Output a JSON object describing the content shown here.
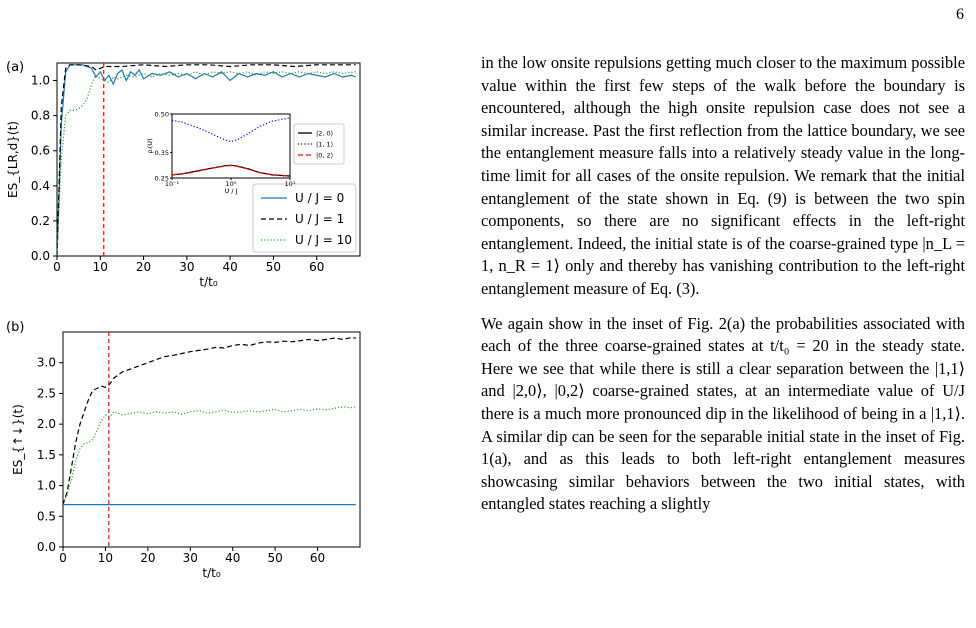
{
  "page_number": "6",
  "panel_labels": [
    "(a)",
    "(b)"
  ],
  "paragraphs": [
    "in the low onsite repulsions getting much closer to the maximum possible value within the first few steps of the walk before the boundary is encountered, although the high onsite repulsion case does not see a similar increase. Past the first reflection from the lattice boundary, we see the entanglement measure falls into a relatively steady value in the long-time limit for all cases of the onsite repulsion. We remark that the initial entanglement of the state shown in Eq. (9) is between the two spin components, so there are no significant effects in the left-right entanglement. Indeed, the initial state is of the coarse-grained type |n_L = 1, n_R = 1⟩ only and thereby has vanishing contribution to the left-right entanglement measure of Eq. (3).",
    "We again show in the inset of Fig. 2(a) the probabilities associated with each of the three coarse-grained states at t/t₀ = 20 in the steady state. Here we see that while there is still a clear separation between the |1,1⟩ and |2,0⟩, |0,2⟩ coarse-grained states, at an intermediate value of U/J there is a much more pronounced dip in the likelihood of being in a |1,1⟩. A similar dip can be seen for the separable initial state in the inset of Fig. 1(a), and as this leads to both left-right entanglement measures showcasing similar behaviors between the two initial states, with entangled states reaching a slightly"
  ],
  "chart_data": [
    {
      "type": "line",
      "panel": "(a)",
      "xlabel": "t/t₀",
      "ylabel": "ES_{LR,d}(t)",
      "xlim": [
        0,
        70
      ],
      "ylim": [
        0,
        1.1
      ],
      "xticks": [
        0,
        10,
        20,
        30,
        40,
        50,
        60
      ],
      "yticks": [
        "0.0",
        "0.2",
        "0.4",
        "0.6",
        "0.8",
        "1.0"
      ],
      "vline_x": 10.8,
      "legend_position": "lower-right",
      "series": [
        {
          "name": "U / J = 0",
          "color": "#1f77b4",
          "style": "solid",
          "points": [
            [
              0,
              0
            ],
            [
              1,
              0.75
            ],
            [
              2,
              1.05
            ],
            [
              3,
              1.09
            ],
            [
              4,
              1.09
            ],
            [
              6,
              1.09
            ],
            [
              8,
              1.07
            ],
            [
              9,
              1.02
            ],
            [
              10,
              1.05
            ],
            [
              11,
              1.0
            ],
            [
              12,
              1.03
            ],
            [
              13,
              0.98
            ],
            [
              14,
              1.04
            ],
            [
              15,
              1.06
            ],
            [
              16,
              1.0
            ],
            [
              17,
              1.05
            ],
            [
              18,
              1.03
            ],
            [
              19,
              1.06
            ],
            [
              20,
              1.01
            ],
            [
              22,
              1.04
            ],
            [
              24,
              1.03
            ],
            [
              26,
              1.05
            ],
            [
              28,
              1.02
            ],
            [
              30,
              1.04
            ],
            [
              32,
              1.01
            ],
            [
              34,
              1.04
            ],
            [
              36,
              1.02
            ],
            [
              38,
              1.05
            ],
            [
              40,
              1.0
            ],
            [
              42,
              1.04
            ],
            [
              44,
              1.02
            ],
            [
              46,
              1.04
            ],
            [
              48,
              1.03
            ],
            [
              50,
              1.05
            ],
            [
              52,
              1.02
            ],
            [
              54,
              1.04
            ],
            [
              56,
              1.02
            ],
            [
              58,
              1.04
            ],
            [
              60,
              1.03
            ],
            [
              62,
              1.02
            ],
            [
              64,
              1.04
            ],
            [
              66,
              1.02
            ],
            [
              68,
              1.03
            ],
            [
              69,
              1.02
            ]
          ]
        },
        {
          "name": "U / J = 1",
          "color": "#000000",
          "style": "dashed",
          "points": [
            [
              0,
              0
            ],
            [
              1,
              0.85
            ],
            [
              2,
              1.07
            ],
            [
              3,
              1.09
            ],
            [
              5,
              1.09
            ],
            [
              8,
              1.08
            ],
            [
              9,
              1.06
            ],
            [
              10,
              1.07
            ],
            [
              11,
              1.08
            ],
            [
              12,
              1.08
            ],
            [
              15,
              1.08
            ],
            [
              20,
              1.09
            ],
            [
              25,
              1.08
            ],
            [
              30,
              1.09
            ],
            [
              35,
              1.09
            ],
            [
              40,
              1.08
            ],
            [
              45,
              1.09
            ],
            [
              50,
              1.09
            ],
            [
              55,
              1.08
            ],
            [
              60,
              1.09
            ],
            [
              65,
              1.09
            ],
            [
              69,
              1.09
            ]
          ]
        },
        {
          "name": "U / J = 10",
          "color": "#2ca02c",
          "style": "dotted",
          "points": [
            [
              0,
              0
            ],
            [
              1,
              0.55
            ],
            [
              2,
              0.8
            ],
            [
              3,
              0.83
            ],
            [
              4,
              0.83
            ],
            [
              5,
              0.84
            ],
            [
              6,
              0.86
            ],
            [
              7,
              0.9
            ],
            [
              8,
              0.98
            ],
            [
              9,
              1.03
            ],
            [
              10,
              1.01
            ],
            [
              11,
              1.0
            ],
            [
              12,
              0.99
            ],
            [
              13,
              1.02
            ],
            [
              14,
              1.01
            ],
            [
              16,
              1.03
            ],
            [
              18,
              1.02
            ],
            [
              20,
              1.04
            ],
            [
              22,
              1.02
            ],
            [
              24,
              1.04
            ],
            [
              26,
              1.03
            ],
            [
              28,
              1.04
            ],
            [
              30,
              1.03
            ],
            [
              32,
              1.05
            ],
            [
              34,
              1.03
            ],
            [
              36,
              1.05
            ],
            [
              38,
              1.04
            ],
            [
              40,
              1.05
            ],
            [
              42,
              1.04
            ],
            [
              44,
              1.05
            ],
            [
              46,
              1.03
            ],
            [
              48,
              1.05
            ],
            [
              50,
              1.04
            ],
            [
              52,
              1.05
            ],
            [
              54,
              1.04
            ],
            [
              56,
              1.05
            ],
            [
              58,
              1.04
            ],
            [
              60,
              1.05
            ],
            [
              62,
              1.04
            ],
            [
              64,
              1.05
            ],
            [
              66,
              1.04
            ],
            [
              69,
              1.05
            ]
          ]
        }
      ],
      "inset": {
        "type": "line",
        "xlabel": "U / J",
        "ylabel": "ρᵢ(U)",
        "xscale": "log",
        "xlim": [
          0.1,
          10
        ],
        "ylim": [
          0.25,
          0.5
        ],
        "xticks": [
          "10⁻¹",
          "10⁰",
          "10¹"
        ],
        "yticks": [
          "0.25",
          "0.35",
          "0.50"
        ],
        "legend_position": "right",
        "series": [
          {
            "name": "|2, 0⟩",
            "color": "#000000",
            "style": "solid",
            "points": [
              [
                0.1,
                0.262
              ],
              [
                0.15,
                0.266
              ],
              [
                0.2,
                0.272
              ],
              [
                0.3,
                0.28
              ],
              [
                0.5,
                0.29
              ],
              [
                0.8,
                0.298
              ],
              [
                1.0,
                0.3
              ],
              [
                1.3,
                0.296
              ],
              [
                2,
                0.285
              ],
              [
                3,
                0.272
              ],
              [
                5,
                0.262
              ],
              [
                10,
                0.258
              ]
            ]
          },
          {
            "name": "|1, 1⟩",
            "color": "#0000ff",
            "style": "dotted",
            "points": [
              [
                0.1,
                0.475
              ],
              [
                0.15,
                0.468
              ],
              [
                0.2,
                0.458
              ],
              [
                0.3,
                0.443
              ],
              [
                0.5,
                0.42
              ],
              [
                0.8,
                0.398
              ],
              [
                1.0,
                0.392
              ],
              [
                1.3,
                0.4
              ],
              [
                2,
                0.425
              ],
              [
                3,
                0.45
              ],
              [
                5,
                0.472
              ],
              [
                10,
                0.485
              ]
            ]
          },
          {
            "name": "|0, 2⟩",
            "color": "#ff0000",
            "style": "dashed",
            "points": [
              [
                0.1,
                0.263
              ],
              [
                0.15,
                0.267
              ],
              [
                0.2,
                0.27
              ],
              [
                0.3,
                0.278
              ],
              [
                0.5,
                0.289
              ],
              [
                0.8,
                0.297
              ],
              [
                1.0,
                0.299
              ],
              [
                1.3,
                0.295
              ],
              [
                2,
                0.284
              ],
              [
                3,
                0.271
              ],
              [
                5,
                0.263
              ],
              [
                10,
                0.257
              ]
            ]
          }
        ]
      }
    },
    {
      "type": "line",
      "panel": "(b)",
      "xlabel": "t/t₀",
      "ylabel": "ES_{↑↓}(t)",
      "xlim": [
        0,
        70
      ],
      "ylim": [
        0,
        3.5
      ],
      "xticks": [
        0,
        10,
        20,
        30,
        40,
        50,
        60
      ],
      "yticks": [
        "0.0",
        "0.5",
        "1.0",
        "1.5",
        "2.0",
        "2.5",
        "3.0"
      ],
      "vline_x": 10.8,
      "series": [
        {
          "name": "U / J = 0",
          "color": "#1f77b4",
          "style": "solid",
          "points": [
            [
              0,
              0.69
            ],
            [
              69,
              0.69
            ]
          ]
        },
        {
          "name": "U / J = 1",
          "color": "#000000",
          "style": "dashed",
          "points": [
            [
              0,
              0.69
            ],
            [
              1,
              0.9
            ],
            [
              2,
              1.3
            ],
            [
              3,
              1.7
            ],
            [
              4,
              2.0
            ],
            [
              5,
              2.2
            ],
            [
              6,
              2.4
            ],
            [
              7,
              2.55
            ],
            [
              8,
              2.58
            ],
            [
              9,
              2.62
            ],
            [
              10,
              2.6
            ],
            [
              11,
              2.65
            ],
            [
              12,
              2.75
            ],
            [
              13,
              2.8
            ],
            [
              14,
              2.85
            ],
            [
              16,
              2.9
            ],
            [
              18,
              2.95
            ],
            [
              20,
              3.0
            ],
            [
              22,
              3.05
            ],
            [
              24,
              3.1
            ],
            [
              26,
              3.12
            ],
            [
              28,
              3.15
            ],
            [
              30,
              3.18
            ],
            [
              32,
              3.2
            ],
            [
              34,
              3.22
            ],
            [
              36,
              3.25
            ],
            [
              38,
              3.24
            ],
            [
              40,
              3.28
            ],
            [
              42,
              3.3
            ],
            [
              44,
              3.28
            ],
            [
              46,
              3.32
            ],
            [
              48,
              3.34
            ],
            [
              50,
              3.33
            ],
            [
              52,
              3.35
            ],
            [
              54,
              3.34
            ],
            [
              56,
              3.36
            ],
            [
              58,
              3.38
            ],
            [
              60,
              3.36
            ],
            [
              62,
              3.38
            ],
            [
              64,
              3.4
            ],
            [
              66,
              3.38
            ],
            [
              68,
              3.41
            ],
            [
              69,
              3.4
            ]
          ]
        },
        {
          "name": "U / J = 10",
          "color": "#2ca02c",
          "style": "dotted",
          "points": [
            [
              0,
              0.69
            ],
            [
              1,
              0.85
            ],
            [
              2,
              1.1
            ],
            [
              3,
              1.4
            ],
            [
              4,
              1.6
            ],
            [
              5,
              1.68
            ],
            [
              6,
              1.7
            ],
            [
              7,
              1.75
            ],
            [
              8,
              1.9
            ],
            [
              9,
              2.05
            ],
            [
              10,
              2.15
            ],
            [
              11,
              2.12
            ],
            [
              12,
              2.2
            ],
            [
              13,
              2.18
            ],
            [
              14,
              2.15
            ],
            [
              16,
              2.18
            ],
            [
              18,
              2.2
            ],
            [
              20,
              2.17
            ],
            [
              22,
              2.2
            ],
            [
              24,
              2.18
            ],
            [
              26,
              2.2
            ],
            [
              28,
              2.16
            ],
            [
              30,
              2.2
            ],
            [
              32,
              2.22
            ],
            [
              34,
              2.18
            ],
            [
              36,
              2.2
            ],
            [
              38,
              2.23
            ],
            [
              40,
              2.19
            ],
            [
              42,
              2.2
            ],
            [
              44,
              2.22
            ],
            [
              46,
              2.2
            ],
            [
              48,
              2.22
            ],
            [
              50,
              2.24
            ],
            [
              52,
              2.2
            ],
            [
              54,
              2.22
            ],
            [
              56,
              2.24
            ],
            [
              58,
              2.22
            ],
            [
              60,
              2.25
            ],
            [
              62,
              2.23
            ],
            [
              64,
              2.26
            ],
            [
              66,
              2.28
            ],
            [
              68,
              2.27
            ],
            [
              69,
              2.28
            ]
          ]
        }
      ]
    }
  ]
}
